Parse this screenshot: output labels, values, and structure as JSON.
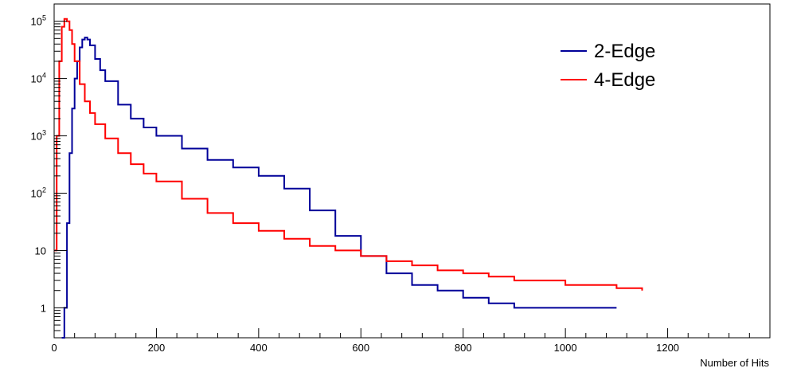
{
  "chart_data": {
    "type": "line",
    "title": "",
    "xlabel": "Number of Hits",
    "ylabel": "",
    "xlim": [
      0,
      1400
    ],
    "ylim": [
      0.3,
      200000
    ],
    "yscale": "log",
    "grid": false,
    "legend_position": "top-right",
    "x_ticks": [
      {
        "value": 0,
        "label": "0"
      },
      {
        "value": 200,
        "label": "200"
      },
      {
        "value": 400,
        "label": "400"
      },
      {
        "value": 600,
        "label": "600"
      },
      {
        "value": 800,
        "label": "800"
      },
      {
        "value": 1000,
        "label": "1000"
      },
      {
        "value": 1200,
        "label": "1200"
      }
    ],
    "y_ticks": [
      {
        "value": 1,
        "base": "1",
        "exp": ""
      },
      {
        "value": 10,
        "base": "10",
        "exp": ""
      },
      {
        "value": 100,
        "base": "10",
        "exp": "2"
      },
      {
        "value": 1000,
        "base": "10",
        "exp": "3"
      },
      {
        "value": 10000,
        "base": "10",
        "exp": "4"
      },
      {
        "value": 100000,
        "base": "10",
        "exp": "5"
      }
    ],
    "series": [
      {
        "name": "2-Edge",
        "color": "#000099",
        "x": [
          15,
          20,
          25,
          30,
          35,
          40,
          45,
          50,
          55,
          60,
          65,
          70,
          80,
          90,
          100,
          125,
          150,
          175,
          200,
          250,
          300,
          350,
          400,
          450,
          500,
          550,
          600,
          650,
          700,
          750,
          800,
          850,
          900,
          950,
          1000,
          1050,
          1100
        ],
        "values": [
          0.3,
          1,
          30,
          500,
          3000,
          10000,
          20000,
          35000,
          48000,
          52000,
          48000,
          38000,
          22000,
          14000,
          9000,
          3500,
          2000,
          1400,
          1000,
          600,
          380,
          280,
          200,
          120,
          50,
          18,
          8,
          4,
          2.5,
          2,
          1.5,
          1.2,
          1,
          1,
          1,
          1,
          1
        ]
      },
      {
        "name": "4-Edge",
        "color": "#ff0000",
        "x": [
          0,
          5,
          10,
          15,
          20,
          25,
          30,
          35,
          40,
          50,
          60,
          70,
          80,
          100,
          125,
          150,
          175,
          200,
          250,
          300,
          350,
          400,
          450,
          500,
          550,
          600,
          650,
          700,
          750,
          800,
          850,
          900,
          950,
          1000,
          1050,
          1100,
          1150
        ],
        "values": [
          10,
          1000,
          20000,
          80000,
          110000,
          100000,
          70000,
          40000,
          20000,
          8000,
          4000,
          2500,
          1600,
          900,
          500,
          320,
          220,
          160,
          80,
          45,
          30,
          22,
          16,
          12,
          10,
          8,
          6.5,
          5.5,
          4.5,
          4,
          3.5,
          3,
          3,
          2.5,
          2.5,
          2.2,
          2
        ]
      }
    ]
  }
}
